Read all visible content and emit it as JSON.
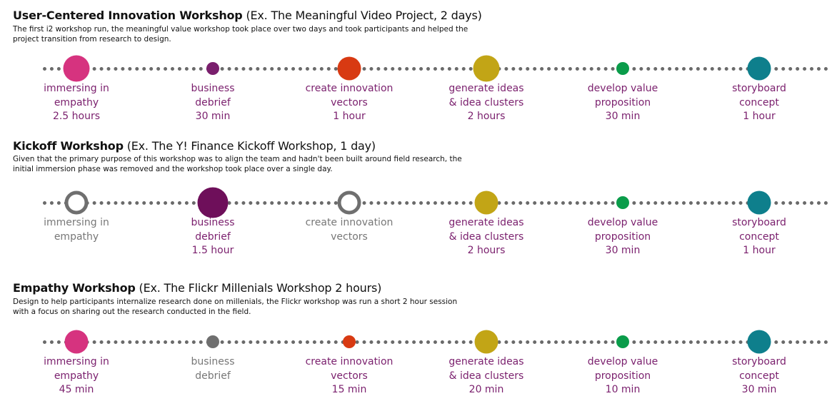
{
  "workshops": [
    {
      "title_bold": "User-Centered Innovation Workshop",
      "title_rest": "(Ex. The Meaningful Video Project, 2 days)",
      "description": "The first i2 workshop run, the meaningful value workshop took place over two days and took participants and helped the project transition from research to design.",
      "steps": [
        {
          "name": "immersing in\nempathy",
          "duration": "2.5 hours",
          "color": "#d6337f",
          "style": "filled",
          "size": "large",
          "active": true
        },
        {
          "name": "business\ndebrief",
          "duration": "30 min",
          "color": "#7a1f6d",
          "style": "filled",
          "size": "small",
          "active": true
        },
        {
          "name": "create innovation\nvectors",
          "duration": "1 hour",
          "color": "#d83a12",
          "style": "filled",
          "size": "medium",
          "active": true
        },
        {
          "name": "generate ideas\n&  idea clusters",
          "duration": "2 hours",
          "color": "#c2a516",
          "style": "filled",
          "size": "large",
          "active": true
        },
        {
          "name": "develop value\nproposition",
          "duration": "30 min",
          "color": "#0a9c4a",
          "style": "filled",
          "size": "small",
          "active": true
        },
        {
          "name": "storyboard\nconcept",
          "duration": "1 hour",
          "color": "#0e7f8c",
          "style": "filled",
          "size": "medium",
          "active": true
        }
      ]
    },
    {
      "title_bold": "Kickoff Workshop",
      "title_rest": "(Ex. The Y! Finance Kickoff Workshop, 1 day)",
      "description": "Given that the primary purpose of this workshop was to align the team and hadn't been built around field research, the initial immersion phase was removed and the workshop took place over a single day.",
      "steps": [
        {
          "name": "immersing in\nempathy",
          "duration": "",
          "color": "#6f6f6f",
          "style": "ring",
          "size": "medium",
          "active": false
        },
        {
          "name": "business\ndebrief",
          "duration": "1.5 hour",
          "color": "#6e0f5a",
          "style": "filled",
          "size": "xlarge",
          "active": true
        },
        {
          "name": "create innovation\nvectors",
          "duration": "",
          "color": "#6f6f6f",
          "style": "ring",
          "size": "medium",
          "active": false
        },
        {
          "name": "generate ideas\n&  idea clusters",
          "duration": "2 hours",
          "color": "#c2a516",
          "style": "filled",
          "size": "medium",
          "active": true
        },
        {
          "name": "develop value\nproposition",
          "duration": "30 min",
          "color": "#0a9c4a",
          "style": "filled",
          "size": "small",
          "active": true
        },
        {
          "name": "storyboard\nconcept",
          "duration": "1 hour",
          "color": "#0e7f8c",
          "style": "filled",
          "size": "medium",
          "active": true
        }
      ]
    },
    {
      "title_bold": "Empathy Workshop",
      "title_rest": "(Ex. The Flickr Millenials Workshop 2 hours)",
      "description": "Design to help participants internalize research done on millenials, the Flickr workshop was run a short 2 hour session with a focus on sharing out the research conducted in the field.",
      "steps": [
        {
          "name": "immersing in\nempathy",
          "duration": "45 min",
          "color": "#d6337f",
          "style": "filled",
          "size": "medium",
          "active": true
        },
        {
          "name": "business\ndebrief",
          "duration": "",
          "color": "#6f6f6f",
          "style": "filled",
          "size": "small",
          "active": false
        },
        {
          "name": "create innovation\nvectors",
          "duration": "15 min",
          "color": "#d83a12",
          "style": "filled",
          "size": "small",
          "active": true
        },
        {
          "name": "generate ideas\n&  idea clusters",
          "duration": "20 min",
          "color": "#c2a516",
          "style": "filled",
          "size": "medium",
          "active": true
        },
        {
          "name": "develop value\nproposition",
          "duration": "10 min",
          "color": "#0a9c4a",
          "style": "filled",
          "size": "small",
          "active": true
        },
        {
          "name": "storyboard\nconcept",
          "duration": "30 min",
          "color": "#0e7f8c",
          "style": "filled",
          "size": "medium",
          "active": true
        }
      ]
    }
  ]
}
